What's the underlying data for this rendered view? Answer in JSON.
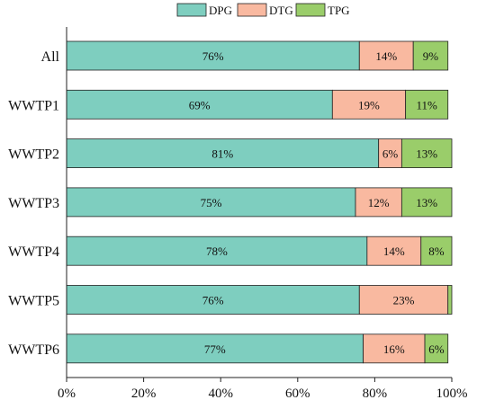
{
  "chart_data": {
    "type": "bar",
    "orientation": "horizontal",
    "stacked": true,
    "title": "",
    "xlabel": "",
    "ylabel": "",
    "xlim": [
      0,
      100
    ],
    "x_ticks": [
      "0%",
      "20%",
      "40%",
      "60%",
      "80%",
      "100%"
    ],
    "grid": false,
    "legend_position": "top-center",
    "categories": [
      "All",
      "WWTP1",
      "WWTP2",
      "WWTP3",
      "WWTP4",
      "WWTP5",
      "WWTP6"
    ],
    "series": [
      {
        "name": "DPG",
        "color": "#7ecebf",
        "values": [
          76,
          69,
          81,
          75,
          78,
          76,
          77
        ],
        "labels": [
          "76%",
          "69%",
          "81%",
          "75%",
          "78%",
          "76%",
          "77%"
        ]
      },
      {
        "name": "DTG",
        "color": "#f9b9a0",
        "values": [
          14,
          19,
          6,
          12,
          14,
          23,
          16
        ],
        "labels": [
          "14%",
          "19%",
          "6%",
          "12%",
          "14%",
          "23%",
          "16%"
        ]
      },
      {
        "name": "TPG",
        "color": "#9acd6a",
        "values": [
          9,
          11,
          13,
          13,
          8,
          1,
          6
        ],
        "labels": [
          "9%",
          "11%",
          "13%",
          "13%",
          "8%",
          "",
          "6%"
        ]
      }
    ]
  }
}
